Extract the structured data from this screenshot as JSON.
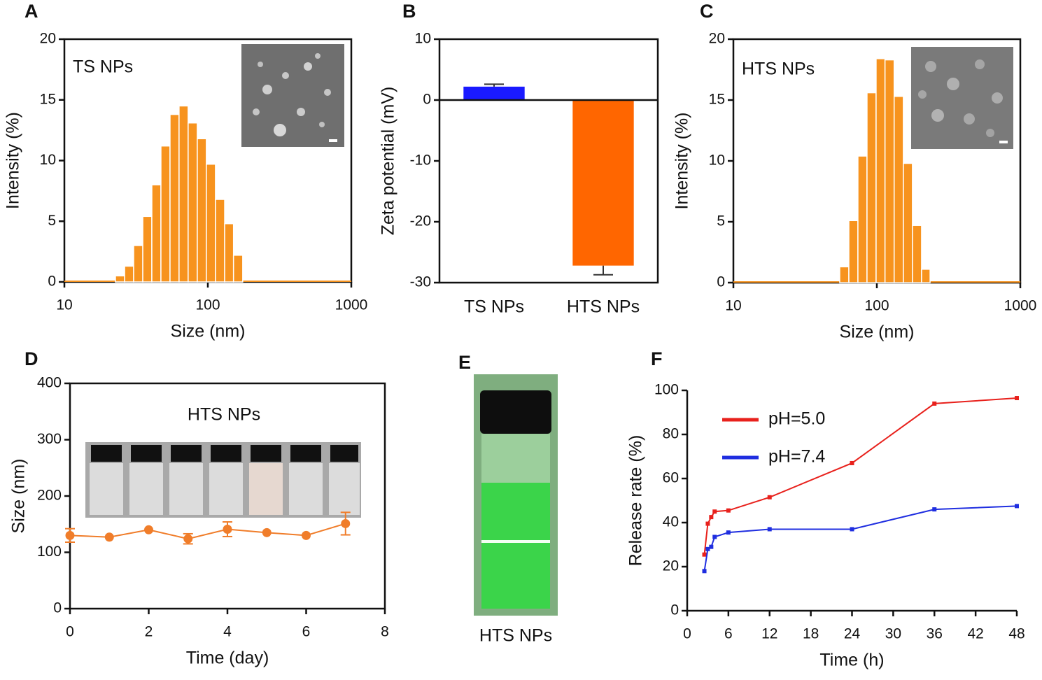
{
  "chart_data": [
    {
      "type": "histogram",
      "panel": "A",
      "annotation": "TS NPs",
      "xlabel": "Size (nm)",
      "ylabel": "Intensity (%)",
      "xscale": "log",
      "xlim": [
        10,
        1000
      ],
      "xticks": [
        10,
        100,
        1000
      ],
      "ylim": [
        0,
        20
      ],
      "yticks": [
        0,
        5,
        10,
        15,
        20
      ],
      "box": true,
      "color": "#f7931e",
      "bins": [
        22.7,
        26.3,
        30.4,
        35.2,
        40.7,
        47.1,
        54.5,
        63.0,
        72.9,
        84.4,
        97.6,
        113,
        131,
        151,
        175
      ],
      "values": [
        0.5,
        1.3,
        3.0,
        5.4,
        8.0,
        11.2,
        13.8,
        14.5,
        13.1,
        11.8,
        9.7,
        6.8,
        4.8,
        2.2
      ]
    },
    {
      "type": "bar",
      "panel": "B",
      "ylabel": "Zeta potential (mV)",
      "categories": [
        "TS NPs",
        "HTS NPs"
      ],
      "values": [
        2.2,
        -27.2
      ],
      "errors": [
        0.4,
        1.5
      ],
      "colors": [
        "#1a1aff",
        "#ff6600"
      ],
      "ylim": [
        -30,
        10
      ],
      "yticks": [
        -30,
        -20,
        -10,
        0,
        10
      ],
      "box": true
    },
    {
      "type": "histogram",
      "panel": "C",
      "annotation": "HTS NPs",
      "xlabel": "Size (nm)",
      "ylabel": "Intensity (%)",
      "xscale": "log",
      "xlim": [
        10,
        1000
      ],
      "xticks": [
        10,
        100,
        1000
      ],
      "ylim": [
        0,
        20
      ],
      "yticks": [
        0,
        5,
        10,
        15,
        20
      ],
      "box": true,
      "color": "#f7931e",
      "bins": [
        55.1,
        63.8,
        73.8,
        85.4,
        98.8,
        114,
        132,
        153,
        177,
        205,
        235
      ],
      "values": [
        1.3,
        5.1,
        10.4,
        15.6,
        18.4,
        18.3,
        15.3,
        9.8,
        4.7,
        1.1
      ]
    },
    {
      "type": "line",
      "panel": "D",
      "annotation": "HTS NPs",
      "xlabel": "Time (day)",
      "ylabel": "Size (nm)",
      "xlim": [
        0,
        8
      ],
      "xticks": [
        0,
        2,
        4,
        6,
        8
      ],
      "ylim": [
        0,
        400
      ],
      "yticks": [
        0,
        100,
        200,
        300,
        400
      ],
      "box": true,
      "x": [
        0,
        1,
        2,
        3,
        4,
        5,
        6,
        7
      ],
      "values": [
        130,
        127,
        140,
        124,
        141,
        135,
        130,
        151
      ],
      "errors": [
        12,
        0,
        0,
        9,
        13,
        0,
        0,
        20
      ],
      "color": "#f07d2a"
    },
    {
      "type": "image",
      "panel": "E",
      "caption": "HTS NPs"
    },
    {
      "type": "line",
      "panel": "F",
      "xlabel": "Time (h)",
      "ylabel": "Release rate (%)",
      "xlim": [
        0,
        48
      ],
      "xticks": [
        0,
        6,
        12,
        18,
        24,
        30,
        36,
        42,
        48
      ],
      "ylim": [
        0,
        100
      ],
      "yticks": [
        0,
        20,
        40,
        60,
        80,
        100
      ],
      "box": false,
      "legend": "upper-left",
      "x": [
        2.5,
        3,
        3.5,
        4,
        6,
        12,
        24,
        36,
        48
      ],
      "series": [
        {
          "name": "pH=5.0",
          "color": "#e8211c",
          "values": [
            25.5,
            39.5,
            42.5,
            45,
            45.5,
            51.5,
            67,
            94,
            96.5
          ]
        },
        {
          "name": "pH=7.4",
          "color": "#1f2ee0",
          "values": [
            18,
            28,
            29,
            33.5,
            35.5,
            37,
            37,
            46,
            47.5
          ]
        }
      ]
    }
  ]
}
